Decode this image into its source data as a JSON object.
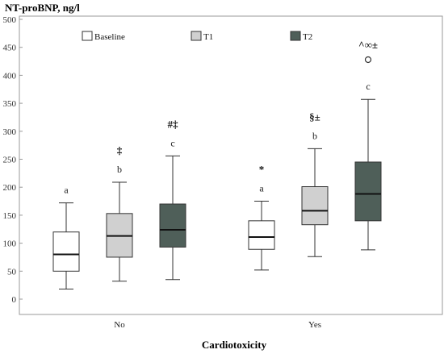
{
  "chart_data": {
    "type": "boxplot",
    "title": "",
    "ylabel": "NT-proBNP, ng/l",
    "xlabel": "Cardiotoxicity",
    "ylim": [
      0,
      500
    ],
    "yticks": [
      0,
      50,
      100,
      150,
      200,
      250,
      300,
      350,
      400,
      450,
      500
    ],
    "groups": [
      "No",
      "Yes"
    ],
    "legend": {
      "placement": "top",
      "entries": [
        {
          "name": "Baseline",
          "color": "#ffffff"
        },
        {
          "name": "T1",
          "color": "#d0d0d0"
        },
        {
          "name": "T2",
          "color": "#4f5f59"
        }
      ]
    },
    "boxes": [
      {
        "group": "No",
        "series": "Baseline",
        "whisker_low": 18,
        "q1": 50,
        "median": 80,
        "q3": 120,
        "whisker_high": 172,
        "letter": "a",
        "symbol": "",
        "outliers": []
      },
      {
        "group": "No",
        "series": "T1",
        "whisker_low": 32,
        "q1": 75,
        "median": 113,
        "q3": 153,
        "whisker_high": 209,
        "letter": "b",
        "symbol": "‡",
        "outliers": []
      },
      {
        "group": "No",
        "series": "T2",
        "whisker_low": 35,
        "q1": 93,
        "median": 124,
        "q3": 170,
        "whisker_high": 256,
        "letter": "c",
        "symbol": "#‡",
        "outliers": []
      },
      {
        "group": "Yes",
        "series": "Baseline",
        "whisker_low": 52,
        "q1": 89,
        "median": 111,
        "q3": 140,
        "whisker_high": 175,
        "letter": "a",
        "symbol": "*",
        "outliers": []
      },
      {
        "group": "Yes",
        "series": "T1",
        "whisker_low": 76,
        "q1": 133,
        "median": 158,
        "q3": 201,
        "whisker_high": 269,
        "letter": "b",
        "symbol": "§±",
        "outliers": []
      },
      {
        "group": "Yes",
        "series": "T2",
        "whisker_low": 88,
        "q1": 140,
        "median": 188,
        "q3": 245,
        "whisker_high": 357,
        "letter": "c",
        "symbol": "^∞±",
        "outliers": [
          428
        ]
      }
    ],
    "grid": false
  }
}
